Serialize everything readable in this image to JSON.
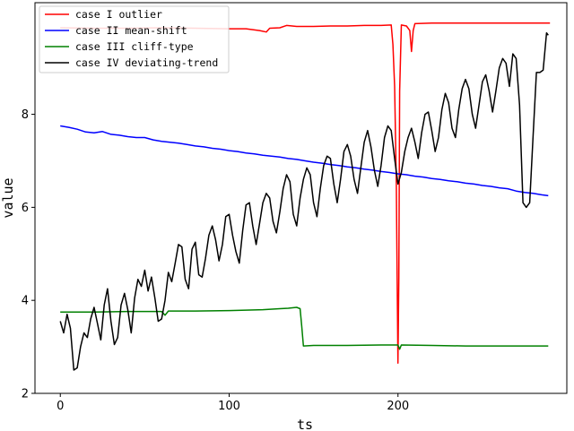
{
  "chart_data": {
    "type": "line",
    "title": "",
    "xlabel": "ts",
    "ylabel": "value",
    "xlim": [
      -15,
      300
    ],
    "ylim": [
      2,
      10.4
    ],
    "xticks": [
      0,
      100,
      200
    ],
    "yticks": [
      2,
      4,
      6,
      8
    ],
    "grid": false,
    "legend_position": "top-left",
    "series": [
      {
        "name": "case I outlier",
        "color": "#ff0000",
        "points": [
          [
            0,
            9.86
          ],
          [
            20,
            9.85
          ],
          [
            40,
            9.85
          ],
          [
            60,
            9.86
          ],
          [
            80,
            9.85
          ],
          [
            100,
            9.84
          ],
          [
            110,
            9.84
          ],
          [
            118,
            9.8
          ],
          [
            122,
            9.77
          ],
          [
            124,
            9.85
          ],
          [
            130,
            9.86
          ],
          [
            134,
            9.91
          ],
          [
            140,
            9.89
          ],
          [
            150,
            9.89
          ],
          [
            160,
            9.9
          ],
          [
            170,
            9.9
          ],
          [
            180,
            9.91
          ],
          [
            190,
            9.91
          ],
          [
            196,
            9.92
          ],
          [
            197,
            9.5
          ],
          [
            198,
            8.6
          ],
          [
            199,
            6.5
          ],
          [
            199.5,
            4.5
          ],
          [
            200,
            2.65
          ],
          [
            200.5,
            4.5
          ],
          [
            201,
            8.5
          ],
          [
            202,
            9.92
          ],
          [
            205,
            9.9
          ],
          [
            207,
            9.8
          ],
          [
            208,
            9.35
          ],
          [
            209,
            9.8
          ],
          [
            210,
            9.95
          ],
          [
            220,
            9.96
          ],
          [
            240,
            9.96
          ],
          [
            260,
            9.96
          ],
          [
            280,
            9.96
          ],
          [
            290,
            9.96
          ]
        ]
      },
      {
        "name": "case II mean-shift",
        "color": "#0000ff",
        "points": [
          [
            0,
            7.75
          ],
          [
            5,
            7.72
          ],
          [
            10,
            7.68
          ],
          [
            15,
            7.62
          ],
          [
            20,
            7.6
          ],
          [
            25,
            7.63
          ],
          [
            30,
            7.57
          ],
          [
            35,
            7.55
          ],
          [
            40,
            7.52
          ],
          [
            45,
            7.5
          ],
          [
            50,
            7.5
          ],
          [
            55,
            7.45
          ],
          [
            60,
            7.42
          ],
          [
            65,
            7.4
          ],
          [
            70,
            7.38
          ],
          [
            75,
            7.35
          ],
          [
            80,
            7.32
          ],
          [
            85,
            7.3
          ],
          [
            90,
            7.27
          ],
          [
            95,
            7.25
          ],
          [
            100,
            7.22
          ],
          [
            105,
            7.2
          ],
          [
            110,
            7.17
          ],
          [
            115,
            7.15
          ],
          [
            120,
            7.12
          ],
          [
            125,
            7.1
          ],
          [
            130,
            7.08
          ],
          [
            135,
            7.05
          ],
          [
            140,
            7.03
          ],
          [
            145,
            7
          ],
          [
            150,
            6.97
          ],
          [
            155,
            6.95
          ],
          [
            160,
            6.92
          ],
          [
            165,
            6.9
          ],
          [
            170,
            6.87
          ],
          [
            175,
            6.85
          ],
          [
            180,
            6.82
          ],
          [
            185,
            6.8
          ],
          [
            190,
            6.77
          ],
          [
            195,
            6.75
          ],
          [
            200,
            6.72
          ],
          [
            205,
            6.7
          ],
          [
            210,
            6.67
          ],
          [
            215,
            6.65
          ],
          [
            220,
            6.62
          ],
          [
            225,
            6.6
          ],
          [
            230,
            6.57
          ],
          [
            235,
            6.55
          ],
          [
            240,
            6.52
          ],
          [
            245,
            6.5
          ],
          [
            250,
            6.47
          ],
          [
            255,
            6.45
          ],
          [
            260,
            6.42
          ],
          [
            265,
            6.4
          ],
          [
            270,
            6.35
          ],
          [
            275,
            6.32
          ],
          [
            280,
            6.3
          ],
          [
            285,
            6.27
          ],
          [
            289,
            6.25
          ]
        ]
      },
      {
        "name": "case III cliff-type",
        "color": "#008000",
        "points": [
          [
            0,
            3.75
          ],
          [
            20,
            3.75
          ],
          [
            40,
            3.76
          ],
          [
            60,
            3.76
          ],
          [
            62,
            3.68
          ],
          [
            64,
            3.77
          ],
          [
            80,
            3.77
          ],
          [
            100,
            3.78
          ],
          [
            120,
            3.8
          ],
          [
            130,
            3.82
          ],
          [
            135,
            3.83
          ],
          [
            140,
            3.85
          ],
          [
            142,
            3.82
          ],
          [
            143,
            3.45
          ],
          [
            144,
            3.02
          ],
          [
            150,
            3.03
          ],
          [
            170,
            3.03
          ],
          [
            190,
            3.04
          ],
          [
            200,
            3.04
          ],
          [
            201,
            2.95
          ],
          [
            202,
            3.04
          ],
          [
            220,
            3.03
          ],
          [
            240,
            3.02
          ],
          [
            260,
            3.02
          ],
          [
            280,
            3.02
          ],
          [
            289,
            3.02
          ]
        ]
      },
      {
        "name": "case IV deviating-trend",
        "color": "#000000",
        "points": [
          [
            0,
            3.55
          ],
          [
            2,
            3.3
          ],
          [
            4,
            3.7
          ],
          [
            6,
            3.4
          ],
          [
            8,
            2.5
          ],
          [
            10,
            2.55
          ],
          [
            12,
            3
          ],
          [
            14,
            3.3
          ],
          [
            16,
            3.2
          ],
          [
            18,
            3.6
          ],
          [
            20,
            3.85
          ],
          [
            22,
            3.5
          ],
          [
            24,
            3.15
          ],
          [
            26,
            3.9
          ],
          [
            28,
            4.25
          ],
          [
            30,
            3.55
          ],
          [
            32,
            3.05
          ],
          [
            34,
            3.2
          ],
          [
            36,
            3.9
          ],
          [
            38,
            4.15
          ],
          [
            40,
            3.8
          ],
          [
            42,
            3.3
          ],
          [
            44,
            4.05
          ],
          [
            46,
            4.45
          ],
          [
            48,
            4.3
          ],
          [
            50,
            4.65
          ],
          [
            52,
            4.2
          ],
          [
            54,
            4.5
          ],
          [
            56,
            4.05
          ],
          [
            58,
            3.55
          ],
          [
            60,
            3.6
          ],
          [
            62,
            4
          ],
          [
            64,
            4.6
          ],
          [
            66,
            4.4
          ],
          [
            68,
            4.8
          ],
          [
            70,
            5.2
          ],
          [
            72,
            5.15
          ],
          [
            74,
            4.45
          ],
          [
            76,
            4.25
          ],
          [
            78,
            5.1
          ],
          [
            80,
            5.25
          ],
          [
            82,
            4.55
          ],
          [
            84,
            4.5
          ],
          [
            86,
            4.9
          ],
          [
            88,
            5.4
          ],
          [
            90,
            5.6
          ],
          [
            92,
            5.3
          ],
          [
            94,
            4.85
          ],
          [
            96,
            5.2
          ],
          [
            98,
            5.8
          ],
          [
            100,
            5.85
          ],
          [
            102,
            5.4
          ],
          [
            104,
            5.05
          ],
          [
            106,
            4.8
          ],
          [
            108,
            5.5
          ],
          [
            110,
            6.05
          ],
          [
            112,
            6.1
          ],
          [
            114,
            5.6
          ],
          [
            116,
            5.2
          ],
          [
            118,
            5.65
          ],
          [
            120,
            6.1
          ],
          [
            122,
            6.3
          ],
          [
            124,
            6.2
          ],
          [
            126,
            5.7
          ],
          [
            128,
            5.45
          ],
          [
            130,
            5.9
          ],
          [
            132,
            6.4
          ],
          [
            134,
            6.7
          ],
          [
            136,
            6.55
          ],
          [
            138,
            5.85
          ],
          [
            140,
            5.6
          ],
          [
            142,
            6.2
          ],
          [
            144,
            6.6
          ],
          [
            146,
            6.85
          ],
          [
            148,
            6.7
          ],
          [
            150,
            6.1
          ],
          [
            152,
            5.8
          ],
          [
            154,
            6.4
          ],
          [
            156,
            6.9
          ],
          [
            158,
            7.1
          ],
          [
            160,
            7.05
          ],
          [
            162,
            6.5
          ],
          [
            164,
            6.1
          ],
          [
            166,
            6.6
          ],
          [
            168,
            7.2
          ],
          [
            170,
            7.35
          ],
          [
            172,
            7.1
          ],
          [
            174,
            6.6
          ],
          [
            176,
            6.3
          ],
          [
            178,
            6.85
          ],
          [
            180,
            7.4
          ],
          [
            182,
            7.65
          ],
          [
            184,
            7.3
          ],
          [
            186,
            6.8
          ],
          [
            188,
            6.45
          ],
          [
            190,
            6.9
          ],
          [
            192,
            7.5
          ],
          [
            194,
            7.75
          ],
          [
            196,
            7.65
          ],
          [
            198,
            7.05
          ],
          [
            200,
            6.5
          ],
          [
            202,
            6.75
          ],
          [
            204,
            7.2
          ],
          [
            206,
            7.5
          ],
          [
            208,
            7.7
          ],
          [
            210,
            7.4
          ],
          [
            212,
            7.05
          ],
          [
            214,
            7.6
          ],
          [
            216,
            8
          ],
          [
            218,
            8.05
          ],
          [
            220,
            7.65
          ],
          [
            222,
            7.2
          ],
          [
            224,
            7.5
          ],
          [
            226,
            8.1
          ],
          [
            228,
            8.45
          ],
          [
            230,
            8.25
          ],
          [
            232,
            7.7
          ],
          [
            234,
            7.5
          ],
          [
            236,
            8.1
          ],
          [
            238,
            8.55
          ],
          [
            240,
            8.75
          ],
          [
            242,
            8.55
          ],
          [
            244,
            8
          ],
          [
            246,
            7.7
          ],
          [
            248,
            8.2
          ],
          [
            250,
            8.7
          ],
          [
            252,
            8.85
          ],
          [
            254,
            8.5
          ],
          [
            256,
            8.05
          ],
          [
            258,
            8.5
          ],
          [
            260,
            9
          ],
          [
            262,
            9.2
          ],
          [
            264,
            9.1
          ],
          [
            266,
            8.6
          ],
          [
            268,
            9.3
          ],
          [
            270,
            9.2
          ],
          [
            272,
            8.2
          ],
          [
            274,
            6.1
          ],
          [
            276,
            6
          ],
          [
            278,
            6.1
          ],
          [
            280,
            7.5
          ],
          [
            282,
            8.9
          ],
          [
            284,
            8.9
          ],
          [
            286,
            8.95
          ],
          [
            288,
            9.75
          ],
          [
            289,
            9.7
          ]
        ]
      }
    ]
  }
}
